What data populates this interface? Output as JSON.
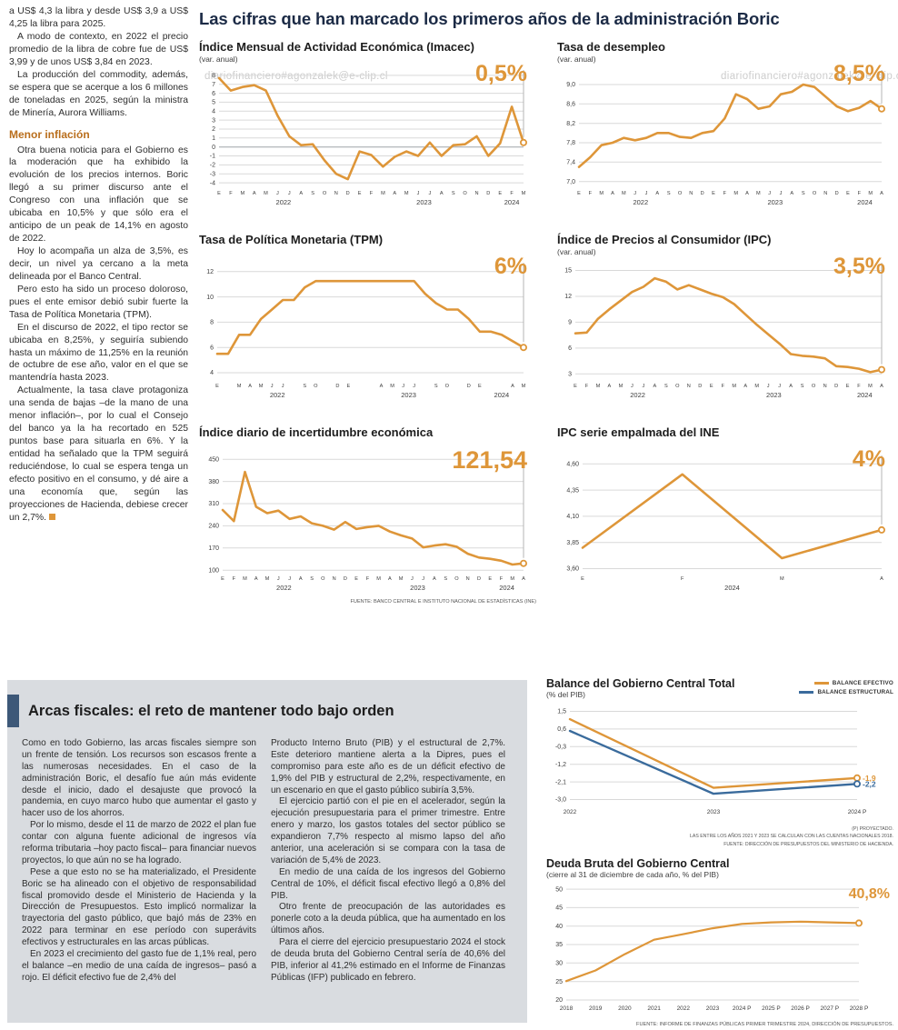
{
  "colors": {
    "accent": "#DE9639",
    "blue": "#3A6B9C",
    "headline": "#1B2A45",
    "subhead_orange": "#B96E1C",
    "gray_box": "#D9DCE0"
  },
  "watermark": "diariofinanciero#agonzalek@e-clip.cl",
  "headline": "Las cifras que han marcado los primeros años de la administración Boric",
  "article": {
    "paras_top": [
      "a US$ 4,3 la libra y desde US$ 3,9 a US$ 4,25 la libra para 2025.",
      "A modo de contexto, en 2022 el precio promedio de la libra de cobre fue de US$ 3,99 y de unos US$ 3,84 en 2023.",
      "La producción del commodity, además, se espera que se acerque a los 6 millones de toneladas en 2025, según la ministra de Minería, Aurora Williams."
    ],
    "subhead": "Menor inflación",
    "paras_inflacion": [
      "Otra buena noticia para el Gobierno es la moderación que ha exhibido la evolución de los precios internos. Boric llegó a su primer discurso ante el Congreso con una inflación que se ubicaba en 10,5% y que sólo era el anticipo de un peak de 14,1% en agosto de 2022.",
      "Hoy lo acompaña un alza de 3,5%, es decir, un nivel ya cercano a la meta delineada por el Banco Central.",
      "Pero esto ha sido un proceso doloroso, pues el ente emisor debió subir fuerte la Tasa de Política Monetaria (TPM).",
      "En el discurso de 2022, el tipo rector se ubicaba en 8,25%, y seguiría subiendo hasta un máximo de 11,25% en la reunión de octubre de ese año, valor en el que se mantendría hasta 2023.",
      "Actualmente, la tasa clave protagoniza una senda de bajas –de la mano de una menor inflación–, por lo cual el Consejo del banco ya la ha recortado en 525 puntos base para situarla en 6%. Y la entidad ha señalado que la TPM seguirá reduciéndose, lo cual se espera tenga un efecto positivo en el consumo, y dé aire a una economía que, según las proyecciones de Hacienda, debiese crecer un 2,7%."
    ]
  },
  "fiscal": {
    "headline": "Arcas fiscales: el reto de mantener todo bajo orden",
    "col1": [
      "Como en todo Gobierno, las arcas fiscales siempre son un frente de tensión. Los recursos son escasos frente a las numerosas necesidades. En el caso de la administración Boric, el desafío fue aún más evidente desde el inicio, dado el desajuste que provocó la pandemia, en cuyo marco hubo que aumentar el gasto y hacer uso de los ahorros.",
      "Por lo mismo, desde el 11 de marzo de 2022 el plan fue contar con alguna fuente adicional de ingresos vía reforma tributaria –hoy pacto fiscal– para financiar nuevos proyectos, lo que aún no se ha logrado.",
      "Pese a que esto no se ha materializado, el Presidente Boric se ha alineado con el objetivo de responsabilidad fiscal promovido desde el Ministerio de Hacienda y la Dirección de Presupuestos. Esto implicó normalizar la trayectoria del gasto público, que bajó más de 23% en 2022 para terminar en ese período con superávits efectivos y estructurales en las arcas públicas.",
      "En 2023 el crecimiento del gasto fue de 1,1% real, pero el balance –en medio de una caída de ingresos– pasó a rojo. El déficit efectivo fue de 2,4% del"
    ],
    "col2": [
      "Producto Interno Bruto (PIB) y el estructural de 2,7%. Este deterioro mantiene alerta a la Dipres, pues el compromiso para este año es de un déficit efectivo de 1,9% del PIB y estructural de 2,2%, respectivamente, en un escenario en que el gasto público subiría 3,5%.",
      "El ejercicio partió con el pie en el acelerador, según la ejecución presupuestaria para el primer trimestre. Entre enero y marzo, los gastos totales del sector público se expandieron 7,7% respecto al mismo lapso del año anterior, una aceleración si se compara con la tasa de variación de 5,4% de 2023.",
      "En medio de una caída de los ingresos del Gobierno Central de 10%, el déficit fiscal efectivo llegó a 0,8% del PIB.",
      "Otro frente de preocupación de las autoridades es ponerle coto a la deuda pública, que ha aumentado en los últimos años.",
      "Para el cierre del ejercicio presupuestario 2024 el stock de deuda bruta del Gobierno Central sería de 40,6% del PIB, inferior al 41,2% estimado en el Informe de Finanzas Públicas (IFP) publicado en febrero."
    ]
  },
  "sources": {
    "top_charts": "FUENTE: BANCO CENTRAL E INSTITUTO NACIONAL DE ESTADÍSTICAS (INE)",
    "balance_note1": "(P) PROYECTADO.",
    "balance_note2": "LAS ENTRE LOS AÑOS 2021 Y 2023 SE CALCULAN CON LAS CUENTAS NACIONALES 2018.",
    "balance_note3": "FUENTE: DIRECCIÓN DE PRESUPUESTOS DEL MINISTERIO DE HACIENDA.",
    "deuda": "FUENTE: INFORME DE FINANZAS PÚBLICAS PRIMER TRIMESTRE 2024, DIRECCIÓN DE PRESUPUESTOS."
  },
  "chart_data": [
    {
      "id": "imacec",
      "type": "line",
      "title": "Índice Mensual de Actividad Económica (Imacec)",
      "subtitle": "(var. anual)",
      "highlight": "0,5%",
      "ylim": [
        -4.4,
        8.6
      ],
      "yticks": [
        8,
        7,
        6,
        5,
        4,
        3,
        2,
        1,
        0,
        -1,
        -2,
        -3,
        -4
      ],
      "ydec": 0,
      "ml": 22,
      "vline": true,
      "x_labels": [
        "E",
        "F",
        "M",
        "A",
        "M",
        "J",
        "J",
        "A",
        "S",
        "O",
        "N",
        "D",
        "E",
        "F",
        "M",
        "A",
        "M",
        "J",
        "J",
        "A",
        "S",
        "O",
        "N",
        "D",
        "E",
        "F",
        "M"
      ],
      "years": [
        {
          "label": "2022",
          "start": 0,
          "end": 11
        },
        {
          "label": "2023",
          "start": 12,
          "end": 23
        },
        {
          "label": "2024",
          "start": 24,
          "end": 26
        }
      ],
      "values": [
        7.7,
        6.3,
        6.7,
        6.9,
        6.3,
        3.5,
        1.2,
        0.2,
        0.3,
        -1.5,
        -3.0,
        -3.6,
        -0.5,
        -0.9,
        -2.2,
        -1.1,
        -0.5,
        -1.0,
        0.5,
        -1.0,
        0.2,
        0.3,
        1.2,
        -1.0,
        0.4,
        4.5,
        0.5
      ]
    },
    {
      "id": "desempleo",
      "type": "line",
      "title": "Tasa de desempleo",
      "subtitle": "(var. anual)",
      "highlight": "8,5%",
      "ylim": [
        6.9,
        9.3
      ],
      "yticks": [
        9.0,
        8.6,
        8.2,
        7.8,
        7.4,
        7.0
      ],
      "ydec": 1,
      "ml": 24,
      "vline": true,
      "x_labels": [
        "E",
        "F",
        "M",
        "A",
        "M",
        "J",
        "J",
        "A",
        "S",
        "O",
        "N",
        "D",
        "E",
        "F",
        "M",
        "A",
        "M",
        "J",
        "J",
        "A",
        "S",
        "O",
        "N",
        "D",
        "E",
        "F",
        "M",
        "A"
      ],
      "years": [
        {
          "label": "2022",
          "start": 0,
          "end": 11
        },
        {
          "label": "2023",
          "start": 12,
          "end": 23
        },
        {
          "label": "2024",
          "start": 24,
          "end": 27
        }
      ],
      "values": [
        7.3,
        7.5,
        7.75,
        7.8,
        7.9,
        7.85,
        7.9,
        8.0,
        8.0,
        7.92,
        7.9,
        8.0,
        8.04,
        8.3,
        8.8,
        8.7,
        8.5,
        8.55,
        8.8,
        8.85,
        9.0,
        8.95,
        8.75,
        8.55,
        8.45,
        8.52,
        8.66,
        8.5
      ]
    },
    {
      "id": "tpm",
      "type": "line",
      "title": "Tasa de Política Monetaria (TPM)",
      "highlight": "6%",
      "ylim": [
        3.5,
        12.7
      ],
      "yticks": [
        12,
        10,
        8,
        6,
        4
      ],
      "ydec": 0,
      "ml": 20,
      "vline": true,
      "x_labels": [
        "E",
        "",
        "M",
        "A",
        "M",
        "J",
        "J",
        "",
        "S",
        "O",
        "",
        "D",
        "E",
        "",
        "",
        "A",
        "M",
        "J",
        "J",
        "",
        "S",
        "O",
        "",
        "D",
        "E",
        "",
        "",
        "A",
        "M"
      ],
      "years": [
        {
          "label": "2022",
          "start": 0,
          "end": 11
        },
        {
          "label": "2023",
          "start": 12,
          "end": 23
        },
        {
          "label": "2024",
          "start": 24,
          "end": 28
        }
      ],
      "values": [
        5.5,
        5.5,
        7.0,
        7.0,
        8.25,
        9.0,
        9.75,
        9.75,
        10.75,
        11.25,
        11.25,
        11.25,
        11.25,
        11.25,
        11.25,
        11.25,
        11.25,
        11.25,
        11.25,
        10.25,
        9.5,
        9.0,
        9.0,
        8.25,
        7.25,
        7.25,
        7.0,
        6.5,
        6.0
      ]
    },
    {
      "id": "ipc",
      "type": "line",
      "title": "Índice de Precios al Consumidor (IPC)",
      "subtitle": "(var. anual)",
      "highlight": "3,5%",
      "ylim": [
        2.4,
        15.9
      ],
      "yticks": [
        15,
        12,
        9,
        6,
        3
      ],
      "ydec": 0,
      "ml": 20,
      "vline": true,
      "x_labels": [
        "E",
        "F",
        "M",
        "A",
        "M",
        "J",
        "J",
        "A",
        "S",
        "O",
        "N",
        "D",
        "E",
        "F",
        "M",
        "A",
        "M",
        "J",
        "J",
        "A",
        "S",
        "O",
        "N",
        "D",
        "E",
        "F",
        "M",
        "A"
      ],
      "years": [
        {
          "label": "2022",
          "start": 0,
          "end": 11
        },
        {
          "label": "2023",
          "start": 12,
          "end": 23
        },
        {
          "label": "2024",
          "start": 24,
          "end": 27
        }
      ],
      "values": [
        7.7,
        7.8,
        9.4,
        10.5,
        11.5,
        12.5,
        13.1,
        14.1,
        13.7,
        12.8,
        13.3,
        12.8,
        12.3,
        11.9,
        11.1,
        9.9,
        8.7,
        7.6,
        6.5,
        5.3,
        5.1,
        5.0,
        4.8,
        3.9,
        3.8,
        3.6,
        3.2,
        3.5
      ]
    },
    {
      "id": "incertidumbre",
      "type": "line",
      "title": "Índice diario de incertidumbre económica",
      "highlight": "121,54",
      "ylim": [
        95,
        462
      ],
      "yticks": [
        450,
        380,
        310,
        240,
        170,
        100
      ],
      "ydec": 0,
      "ml": 26,
      "vline": true,
      "x_labels": [
        "E",
        "F",
        "M",
        "A",
        "M",
        "J",
        "J",
        "A",
        "S",
        "O",
        "N",
        "D",
        "E",
        "F",
        "M",
        "A",
        "M",
        "J",
        "J",
        "A",
        "S",
        "O",
        "N",
        "D",
        "E",
        "F",
        "M",
        "A"
      ],
      "years": [
        {
          "label": "2022",
          "start": 0,
          "end": 11
        },
        {
          "label": "2023",
          "start": 12,
          "end": 23
        },
        {
          "label": "2024",
          "start": 24,
          "end": 27
        }
      ],
      "values": [
        290,
        255,
        410,
        300,
        280,
        288,
        262,
        270,
        248,
        240,
        228,
        252,
        230,
        236,
        240,
        222,
        210,
        200,
        172,
        178,
        182,
        174,
        152,
        140,
        136,
        130,
        118,
        121.54
      ]
    },
    {
      "id": "ipc-ine",
      "type": "line",
      "title": "IPC serie empalmada del INE",
      "highlight": "4%",
      "ylim": [
        3.57,
        4.68
      ],
      "yticks": [
        4.6,
        4.35,
        4.1,
        3.85,
        3.6
      ],
      "ydec": 2,
      "ml": 28,
      "vline": true,
      "x_labels": [
        "E",
        "F",
        "M",
        "A"
      ],
      "years": [
        {
          "label": "2024",
          "start": 0,
          "end": 3
        }
      ],
      "values": [
        3.8,
        4.5,
        3.7,
        3.97
      ]
    },
    {
      "id": "balance",
      "type": "line",
      "title": "Balance del Gobierno Central Total",
      "subtitle": "(% del PIB)",
      "ylim": [
        -3.3,
        1.8
      ],
      "yticks": [
        1.5,
        0.6,
        -0.3,
        -1.2,
        -2.1,
        -3.0
      ],
      "ydec": 1,
      "ml": 26,
      "mr": 36,
      "xsize": "m",
      "lw": 2.4,
      "x_labels": [
        "2022",
        "2023",
        "2024 P"
      ],
      "series": [
        {
          "name": "BALANCE EFECTIVO",
          "color": "#DE9639",
          "values": [
            1.1,
            -2.4,
            -1.9
          ],
          "end_label": "-1,9"
        },
        {
          "name": "BALANCE ESTRUCTURAL",
          "color": "#3A6B9C",
          "values": [
            0.5,
            -2.7,
            -2.2
          ],
          "end_label": "-2,2"
        }
      ]
    },
    {
      "id": "deuda",
      "type": "line",
      "title": "Deuda Bruta del Gobierno Central",
      "subtitle": "(cierre al 31 de diciembre de cada año, % del PIB)",
      "highlight": "40,8%",
      "ylim": [
        19.5,
        51
      ],
      "yticks": [
        50,
        45,
        40,
        35,
        30,
        25,
        20
      ],
      "ydec": 0,
      "ml": 22,
      "mr": 34,
      "xsize": "m",
      "lw": 2.2,
      "x_labels": [
        "2018",
        "2019",
        "2020",
        "2021",
        "2022",
        "2023",
        "2024 P",
        "2025 P",
        "2026 P",
        "2027 P",
        "2028 P"
      ],
      "values": [
        25.1,
        28.0,
        32.4,
        36.3,
        37.8,
        39.4,
        40.6,
        41.0,
        41.2,
        41.0,
        40.8
      ]
    }
  ]
}
